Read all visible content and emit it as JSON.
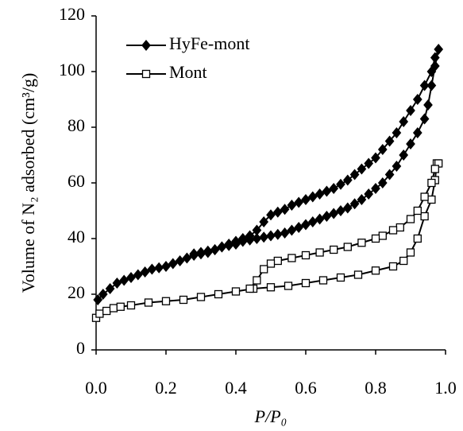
{
  "chart_data": {
    "type": "line",
    "x_label": "P/P₀",
    "y_label": "Volume of N₂ adsorbed (cm³/g)",
    "xlim": [
      0,
      1
    ],
    "ylim": [
      0,
      120
    ],
    "xticks": [
      {
        "value": 0,
        "label": "0.0"
      },
      {
        "value": 0.2,
        "label": "0.2"
      },
      {
        "value": 0.4,
        "label": "0.4"
      },
      {
        "value": 0.6,
        "label": "0.6"
      },
      {
        "value": 0.8,
        "label": "0.8"
      },
      {
        "value": 1,
        "label": "1.0"
      }
    ],
    "yticks": [
      0,
      20,
      40,
      60,
      80,
      100,
      120
    ],
    "grid": false,
    "legend": "upper left",
    "series": [
      {
        "name": "HyFe-mont",
        "color": "#000000",
        "marker": "diamond",
        "x": [
          0.005,
          0.02,
          0.04,
          0.06,
          0.08,
          0.1,
          0.12,
          0.14,
          0.16,
          0.18,
          0.2,
          0.22,
          0.24,
          0.26,
          0.28,
          0.3,
          0.32,
          0.34,
          0.36,
          0.38,
          0.4,
          0.42,
          0.44,
          0.46,
          0.48,
          0.5,
          0.52,
          0.54,
          0.56,
          0.58,
          0.6,
          0.62,
          0.64,
          0.66,
          0.68,
          0.7,
          0.72,
          0.74,
          0.76,
          0.78,
          0.8,
          0.82,
          0.84,
          0.86,
          0.88,
          0.9,
          0.92,
          0.94,
          0.95,
          0.96,
          0.97,
          0.98,
          0.97,
          0.96,
          0.94,
          0.92,
          0.9,
          0.88,
          0.86,
          0.84,
          0.82,
          0.8,
          0.78,
          0.76,
          0.74,
          0.72,
          0.7,
          0.68,
          0.66,
          0.64,
          0.62,
          0.6,
          0.58,
          0.56,
          0.54,
          0.52,
          0.5,
          0.48,
          0.46,
          0.44,
          0.42,
          0.4,
          0.38,
          0.36,
          0.34,
          0.32,
          0.3,
          0.28
        ],
        "values": [
          18,
          20,
          22,
          24,
          25,
          26,
          27,
          28,
          29,
          29.5,
          30,
          31,
          32,
          33,
          34,
          34.5,
          35,
          36,
          37,
          37.5,
          38,
          39,
          39.5,
          40,
          40.5,
          41,
          41.5,
          42,
          43,
          44,
          45,
          46,
          47,
          48,
          49,
          50,
          51,
          52.5,
          54,
          56,
          58,
          60,
          63,
          66,
          70,
          74,
          78,
          83,
          88,
          95,
          102,
          108,
          105,
          100,
          95,
          90,
          86,
          82,
          78,
          75,
          72,
          69,
          67,
          65,
          63,
          61,
          59.5,
          58,
          57,
          56,
          55,
          54,
          53,
          52,
          50.5,
          49.5,
          48.5,
          46,
          43,
          41,
          40,
          39,
          38,
          37,
          36,
          35.5,
          35,
          34.5
        ]
      },
      {
        "name": "Mont",
        "color": "#000000",
        "marker": "square",
        "x": [
          0,
          0.01,
          0.03,
          0.05,
          0.07,
          0.1,
          0.15,
          0.2,
          0.25,
          0.3,
          0.35,
          0.4,
          0.45,
          0.5,
          0.55,
          0.6,
          0.65,
          0.7,
          0.75,
          0.8,
          0.85,
          0.88,
          0.9,
          0.92,
          0.94,
          0.96,
          0.97,
          0.975,
          0.98,
          0.97,
          0.96,
          0.94,
          0.92,
          0.9,
          0.87,
          0.85,
          0.82,
          0.8,
          0.76,
          0.72,
          0.68,
          0.64,
          0.6,
          0.56,
          0.52,
          0.5,
          0.48,
          0.46,
          0.44
        ],
        "values": [
          11.5,
          13,
          14,
          15,
          15.5,
          16,
          17,
          17.5,
          18,
          19,
          20,
          21,
          22,
          22.5,
          23,
          24,
          25,
          26,
          27,
          28.5,
          30,
          32,
          35,
          40,
          48,
          54,
          61,
          67,
          67,
          65,
          60,
          55,
          50,
          47,
          44,
          43,
          41,
          40,
          38.5,
          37,
          36,
          35,
          34,
          33,
          32,
          31,
          29,
          25,
          22
        ]
      }
    ]
  }
}
